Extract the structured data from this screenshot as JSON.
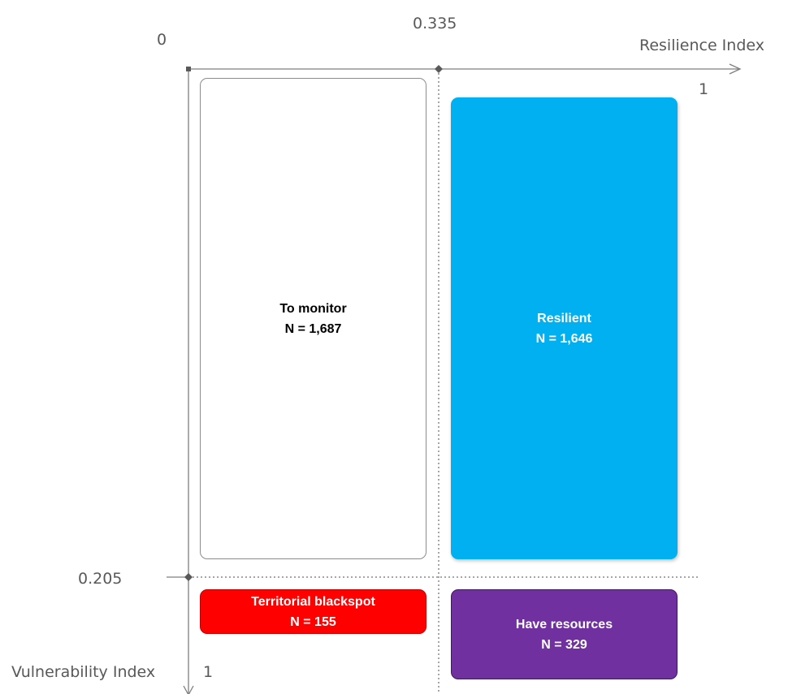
{
  "axes": {
    "x": {
      "title": "Resilience Index",
      "origin_label": "0",
      "threshold_label": "0.335",
      "end_label": "1"
    },
    "y": {
      "title": "Vulnerability Index",
      "threshold_label": "0.205",
      "end_label": "1"
    }
  },
  "quadrants": {
    "to_monitor": {
      "name": "To monitor",
      "count": "N = 1,687",
      "color": "#ffffff"
    },
    "resilient": {
      "name": "Resilient",
      "count": "N = 1,646",
      "color": "#00b0f0"
    },
    "territorial_blackspot": {
      "name": "Territorial blackspot",
      "count": "N = 155",
      "color": "#ff0000"
    },
    "have_resources": {
      "name": "Have resources",
      "count": "N = 329",
      "color": "#7030a0"
    }
  }
}
